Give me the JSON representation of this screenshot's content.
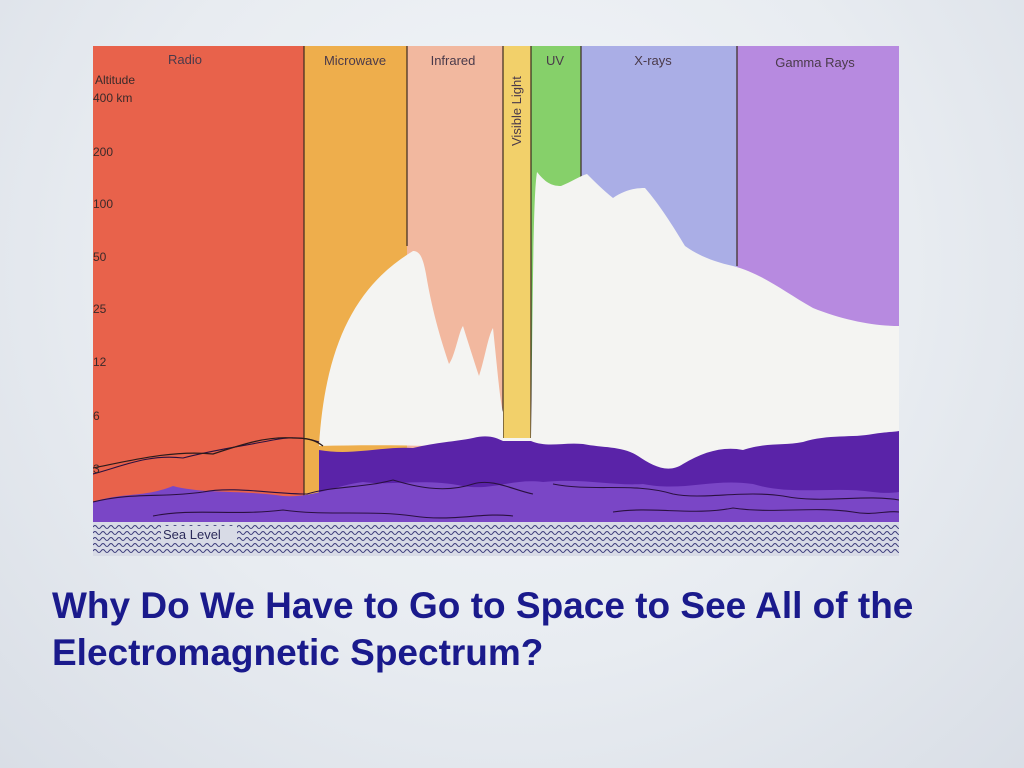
{
  "slide": {
    "title": "Why Do We Have to Go to Space to See All of the Electromagnetic Spectrum?"
  },
  "diagram": {
    "bands": [
      {
        "label": "Radio",
        "color": "#e8624b"
      },
      {
        "label": "Microwave",
        "color": "#eeae4c"
      },
      {
        "label": "Infrared",
        "color": "#f2b89f"
      },
      {
        "label": "Visible Light",
        "color": "#f2d06a"
      },
      {
        "label": "UV",
        "color": "#86d06a"
      },
      {
        "label": "X-rays",
        "color": "#aaaee6"
      },
      {
        "label": "Gamma Rays",
        "color": "#b78ae0"
      }
    ],
    "altitude_axis": {
      "title": "Altitude",
      "ticks": [
        "400 km",
        "200",
        "100",
        "50",
        "25",
        "12",
        "6",
        "3"
      ]
    },
    "sea_level_label": "Sea Level",
    "colors": {
      "atmosphere_opaque": "#f4f4f2",
      "clouds_dark": "#5a23a8",
      "clouds_mid": "#7a46c6",
      "sea": "#d8dbe6",
      "title": "#1a1a8c"
    }
  }
}
